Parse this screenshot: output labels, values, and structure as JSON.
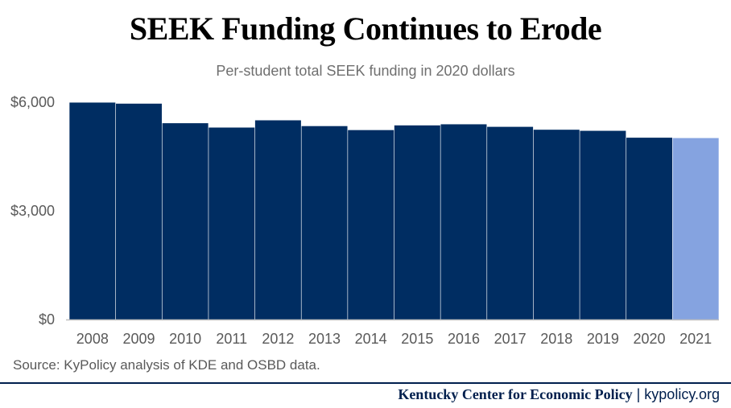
{
  "header": {
    "title": "SEEK Funding Continues to Erode",
    "subtitle": "Per-student total SEEK funding in 2020 dollars"
  },
  "source_note": "Source: KyPolicy analysis of KDE and OSBD data.",
  "footer": {
    "org": "Kentucky Center for Economic Policy",
    "separator": "|",
    "site": "kypolicy.org"
  },
  "colors": {
    "bar_primary": "#002d62",
    "bar_highlight": "#85a3e0",
    "axis": "#bfbfbf",
    "tick_text": "#595959",
    "footer": "#001f4d"
  },
  "chart_data": {
    "type": "bar",
    "title": "SEEK Funding Continues to Erode",
    "subtitle": "Per-student total SEEK funding in 2020 dollars",
    "categories": [
      "2008",
      "2009",
      "2010",
      "2011",
      "2012",
      "2013",
      "2014",
      "2015",
      "2016",
      "2017",
      "2018",
      "2019",
      "2020",
      "2021"
    ],
    "values": [
      5990,
      5960,
      5420,
      5300,
      5500,
      5340,
      5230,
      5360,
      5390,
      5320,
      5240,
      5210,
      5020,
      5010
    ],
    "highlight_index": 13,
    "ylim": [
      0,
      6000
    ],
    "yticks": [
      0,
      3000,
      6000
    ],
    "ytick_labels": [
      "$0",
      "$3,000",
      "$6,000"
    ],
    "xlabel": "",
    "ylabel": "",
    "grid": false,
    "legend": "none"
  }
}
